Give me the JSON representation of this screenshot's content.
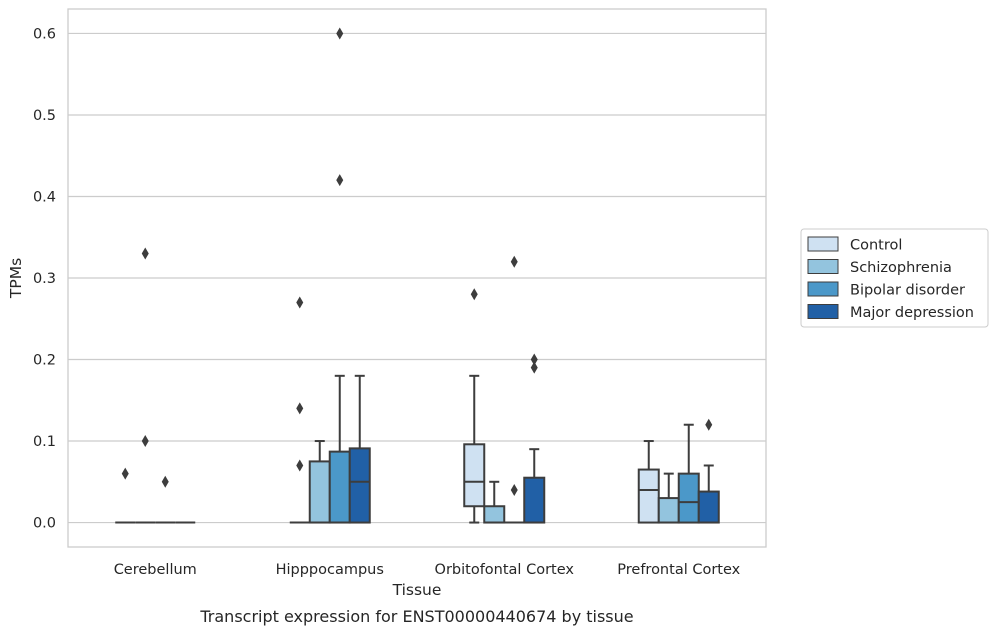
{
  "chart_data": {
    "type": "box",
    "xlabel": "Tissue",
    "ylabel": "TPMs",
    "caption": "Transcript expression for ENST00000440674 by tissue",
    "ylim": [
      -0.03,
      0.63
    ],
    "yticks": [
      0.0,
      0.1,
      0.2,
      0.3,
      0.4,
      0.5,
      0.6
    ],
    "ytick_labels": [
      "0.0",
      "0.1",
      "0.2",
      "0.3",
      "0.4",
      "0.5",
      "0.6"
    ],
    "grid": "horizontal",
    "legend_position": "right",
    "categories": [
      "Cerebellum",
      "Hipppocampus",
      "Orbitofontal Cortex",
      "Prefrontal Cortex"
    ],
    "series": [
      {
        "name": "Control",
        "color": "#cfe1f2",
        "boxes": [
          {
            "q1": 0,
            "median": 0,
            "q3": 0,
            "whislo": 0,
            "whishi": 0,
            "fliers": [
              0.06
            ]
          },
          {
            "q1": 0,
            "median": 0,
            "q3": 0,
            "whislo": 0,
            "whishi": 0,
            "fliers": [
              0.07,
              0.14,
              0.27
            ]
          },
          {
            "q1": 0.02,
            "median": 0.05,
            "q3": 0.096,
            "whislo": 0,
            "whishi": 0.18,
            "fliers": [
              0.28
            ]
          },
          {
            "q1": 0,
            "median": 0.04,
            "q3": 0.065,
            "whislo": 0,
            "whishi": 0.1,
            "fliers": []
          }
        ]
      },
      {
        "name": "Schizophrenia",
        "color": "#93c4de",
        "boxes": [
          {
            "q1": 0,
            "median": 0,
            "q3": 0,
            "whislo": 0,
            "whishi": 0,
            "fliers": [
              0.1,
              0.33
            ]
          },
          {
            "q1": 0,
            "median": 0,
            "q3": 0.075,
            "whislo": 0,
            "whishi": 0.1,
            "fliers": []
          },
          {
            "q1": 0,
            "median": 0,
            "q3": 0.02,
            "whislo": 0,
            "whishi": 0.05,
            "fliers": []
          },
          {
            "q1": 0,
            "median": 0,
            "q3": 0.03,
            "whislo": 0,
            "whishi": 0.06,
            "fliers": []
          }
        ]
      },
      {
        "name": "Bipolar disorder",
        "color": "#4b98c9",
        "boxes": [
          {
            "q1": 0,
            "median": 0,
            "q3": 0,
            "whislo": 0,
            "whishi": 0,
            "fliers": [
              0.05
            ]
          },
          {
            "q1": 0,
            "median": 0,
            "q3": 0.087,
            "whislo": 0,
            "whishi": 0.18,
            "fliers": [
              0.42,
              0.6
            ]
          },
          {
            "q1": 0,
            "median": 0,
            "q3": 0,
            "whislo": 0,
            "whishi": 0,
            "fliers": [
              0.04,
              0.32
            ]
          },
          {
            "q1": 0,
            "median": 0.025,
            "q3": 0.06,
            "whislo": 0,
            "whishi": 0.12,
            "fliers": []
          }
        ]
      },
      {
        "name": "Major depression",
        "color": "#2160a6",
        "boxes": [
          {
            "q1": 0,
            "median": 0,
            "q3": 0,
            "whislo": 0,
            "whishi": 0,
            "fliers": []
          },
          {
            "q1": 0,
            "median": 0.05,
            "q3": 0.091,
            "whislo": 0,
            "whishi": 0.18,
            "fliers": []
          },
          {
            "q1": 0,
            "median": 0,
            "q3": 0.055,
            "whislo": 0,
            "whishi": 0.09,
            "fliers": [
              0.19,
              0.2
            ]
          },
          {
            "q1": 0,
            "median": 0,
            "q3": 0.038,
            "whislo": 0,
            "whishi": 0.07,
            "fliers": [
              0.12
            ]
          }
        ]
      }
    ]
  }
}
